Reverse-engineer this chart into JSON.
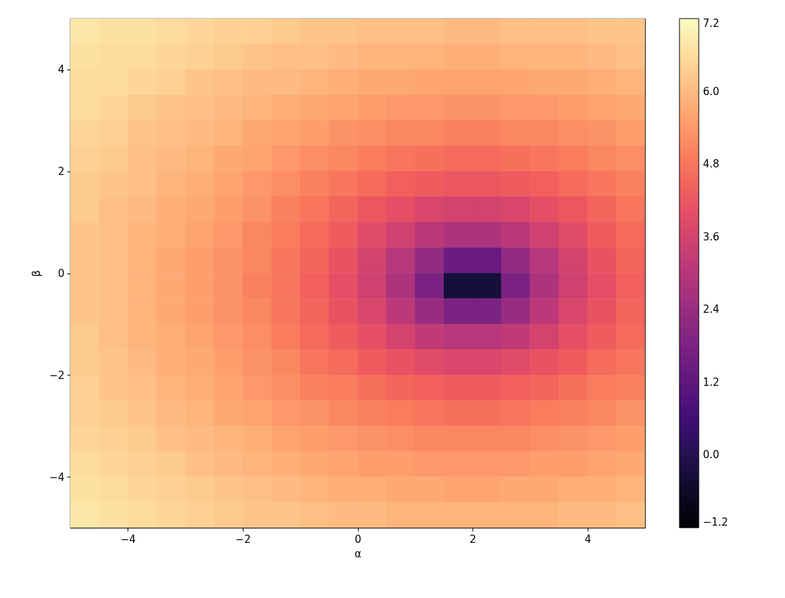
{
  "chart_data": {
    "type": "scatter",
    "marker": "square",
    "xlabel": "α",
    "ylabel": "β",
    "xlim": [
      -5,
      5
    ],
    "ylim": [
      -5,
      5
    ],
    "xticks": [
      -4,
      -2,
      0,
      2,
      4
    ],
    "yticks": [
      -4,
      -2,
      0,
      2,
      4
    ],
    "clim": [
      -1.2,
      7.2
    ],
    "cticks": [
      -1.2,
      {
        "value": 0,
        "label": "0.0"
      },
      1.2,
      2.4,
      3.6,
      4.8,
      {
        "value": 6,
        "label": "6.0"
      },
      7.2
    ],
    "x": [
      -4.75,
      -4.25,
      -3.75,
      -3.25,
      -2.75,
      -2.25,
      -1.75,
      -1.25,
      -0.75,
      -0.25,
      0.25,
      0.75,
      1.25,
      1.75,
      2.25,
      2.75,
      3.25,
      3.75,
      4.25,
      4.75,
      -4.75,
      -4.25,
      -3.75,
      -3.25,
      -2.75,
      -2.25,
      -1.75,
      -1.25,
      -0.75,
      -0.25,
      0.25,
      0.75,
      1.25,
      1.75,
      2.25,
      2.75,
      3.25,
      3.75,
      4.25,
      4.75,
      -4.75,
      -4.25,
      -3.75,
      -3.25,
      -2.75,
      -2.25,
      -1.75,
      -1.25,
      -0.75,
      -0.25,
      0.25,
      0.75,
      1.25,
      1.75,
      2.25,
      2.75,
      3.25,
      3.75,
      4.25,
      4.75,
      -4.75,
      -4.25,
      -3.75,
      -3.25,
      -2.75,
      -2.25,
      -1.75,
      -1.25,
      -0.75,
      -0.25,
      0.25,
      0.75,
      1.25,
      1.75,
      2.25,
      2.75,
      3.25,
      3.75,
      4.25,
      4.75,
      -4.75,
      -4.25,
      -3.75,
      -3.25,
      -2.75,
      -2.25,
      -1.75,
      -1.25,
      -0.75,
      -0.25,
      0.25,
      0.75,
      1.25,
      1.75,
      2.25,
      2.75,
      3.25,
      3.75,
      4.25,
      4.75,
      -4.75,
      -4.25,
      -3.75,
      -3.25,
      -2.75,
      -2.25,
      -1.75,
      -1.25,
      -0.75,
      -0.25,
      0.25,
      0.75,
      1.25,
      1.75,
      2.25,
      2.75,
      3.25,
      3.75,
      4.25,
      4.75,
      -4.75,
      -4.25,
      -3.75,
      -3.25,
      -2.75,
      -2.25,
      -1.75,
      -1.25,
      -0.75,
      -0.25,
      0.25,
      0.75,
      1.25,
      1.75,
      2.25,
      2.75,
      3.25,
      3.75,
      4.25,
      4.75,
      -4.75,
      -4.25,
      -3.75,
      -3.25,
      -2.75,
      -2.25,
      -1.75,
      -1.25,
      -0.75,
      -0.25,
      0.25,
      0.75,
      1.25,
      1.75,
      2.25,
      2.75,
      3.25,
      3.75,
      4.25,
      4.75,
      -4.75,
      -4.25,
      -3.75,
      -3.25,
      -2.75,
      -2.25,
      -1.75,
      -1.25,
      -0.75,
      -0.25,
      0.25,
      0.75,
      1.25,
      1.75,
      2.25,
      2.75,
      3.25,
      3.75,
      4.25,
      4.75,
      -4.75,
      -4.25,
      -3.75,
      -3.25,
      -2.75,
      -2.25,
      -1.75,
      -1.25,
      -0.75,
      -0.25,
      0.25,
      0.75,
      1.25,
      1.75,
      2.25,
      2.75,
      3.25,
      3.75,
      4.25,
      4.75,
      -4.75,
      -4.25,
      -3.75,
      -3.25,
      -2.75,
      -2.25,
      -1.75,
      -1.25,
      -0.75,
      -0.25,
      0.25,
      0.75,
      1.25,
      1.75,
      2.25,
      2.75,
      3.25,
      3.75,
      4.25,
      4.75,
      -4.75,
      -4.25,
      -3.75,
      -3.25,
      -2.75,
      -2.25,
      -1.75,
      -1.25,
      -0.75,
      -0.25,
      0.25,
      0.75,
      1.25,
      1.75,
      2.25,
      2.75,
      3.25,
      3.75,
      4.25,
      4.75,
      -4.75,
      -4.25,
      -3.75,
      -3.25,
      -2.75,
      -2.25,
      -1.75,
      -1.25,
      -0.75,
      -0.25,
      0.25,
      0.75,
      1.25,
      1.75,
      2.25,
      2.75,
      3.25,
      3.75,
      4.25,
      4.75,
      -4.75,
      -4.25,
      -3.75,
      -3.25,
      -2.75,
      -2.25,
      -1.75,
      -1.25,
      -0.75,
      -0.25,
      0.25,
      0.75,
      1.25,
      1.75,
      2.25,
      2.75,
      3.25,
      3.75,
      4.25,
      4.75,
      -4.75,
      -4.25,
      -3.75,
      -3.25,
      -2.75,
      -2.25,
      -1.75,
      -1.25,
      -0.75,
      -0.25,
      0.25,
      0.75,
      1.25,
      1.75,
      2.25,
      2.75,
      3.25,
      3.75,
      4.25,
      4.75,
      -4.75,
      -4.25,
      -3.75,
      -3.25,
      -2.75,
      -2.25,
      -1.75,
      -1.25,
      -0.75,
      -0.25,
      0.25,
      0.75,
      1.25,
      1.75,
      2.25,
      2.75,
      3.25,
      3.75,
      4.25,
      4.75,
      -4.75,
      -4.25,
      -3.75,
      -3.25,
      -2.75,
      -2.25,
      -1.75,
      -1.25,
      -0.75,
      -0.25,
      0.25,
      0.75,
      1.25,
      1.75,
      2.25,
      2.75,
      3.25,
      3.75,
      4.25,
      4.75,
      -4.75,
      -4.25,
      -3.75,
      -3.25,
      -2.75,
      -2.25,
      -1.75,
      -1.25,
      -0.75,
      -0.25,
      0.25,
      0.75,
      1.25,
      1.75,
      2.25,
      2.75,
      3.25,
      3.75,
      4.25,
      4.75,
      -4.75,
      -4.25,
      -3.75,
      -3.25,
      -2.75,
      -2.25,
      -1.75,
      -1.25,
      -0.75,
      -0.25,
      0.25,
      0.75,
      1.25,
      1.75,
      2.25,
      2.75,
      3.25,
      3.75,
      4.25,
      4.75,
      -4.75,
      -4.25,
      -3.75,
      -3.25,
      -2.75,
      -2.25,
      -1.75,
      -1.25,
      -0.75,
      -0.25,
      0.25,
      0.75,
      1.25,
      1.75,
      2.25,
      2.75,
      3.25,
      3.75,
      4.25,
      4.75
    ],
    "values": [
      4.75,
      4.75,
      4.75,
      4.75,
      4.75,
      4.75,
      4.75,
      4.75,
      4.75,
      4.75,
      4.75,
      4.75,
      4.75,
      4.75,
      4.75,
      4.75,
      4.75,
      4.75,
      4.75,
      4.75,
      4.25,
      4.25,
      4.25,
      4.25,
      4.25,
      4.25,
      4.25,
      4.25,
      4.25,
      4.25,
      4.25,
      4.25,
      4.25,
      4.25,
      4.25,
      4.25,
      4.25,
      4.25,
      4.25,
      4.25,
      3.75,
      3.75,
      3.75,
      3.75,
      3.75,
      3.75,
      3.75,
      3.75,
      3.75,
      3.75,
      3.75,
      3.75,
      3.75,
      3.75,
      3.75,
      3.75,
      3.75,
      3.75,
      3.75,
      3.75,
      3.25,
      3.25,
      3.25,
      3.25,
      3.25,
      3.25,
      3.25,
      3.25,
      3.25,
      3.25,
      3.25,
      3.25,
      3.25,
      3.25,
      3.25,
      3.25,
      3.25,
      3.25,
      3.25,
      3.25,
      2.75,
      2.75,
      2.75,
      2.75,
      2.75,
      2.75,
      2.75,
      2.75,
      2.75,
      2.75,
      2.75,
      2.75,
      2.75,
      2.75,
      2.75,
      2.75,
      2.75,
      2.75,
      2.75,
      2.75,
      2.25,
      2.25,
      2.25,
      2.25,
      2.25,
      2.25,
      2.25,
      2.25,
      2.25,
      2.25,
      2.25,
      2.25,
      2.25,
      2.25,
      2.25,
      2.25,
      2.25,
      2.25,
      2.25,
      2.25,
      1.75,
      1.75,
      1.75,
      1.75,
      1.75,
      1.75,
      1.75,
      1.75,
      1.75,
      1.75,
      1.75,
      1.75,
      1.75,
      1.75,
      1.75,
      1.75,
      1.75,
      1.75,
      1.75,
      1.75,
      1.25,
      1.25,
      1.25,
      1.25,
      1.25,
      1.25,
      1.25,
      1.25,
      1.25,
      1.25,
      1.25,
      1.25,
      1.25,
      1.25,
      1.25,
      1.25,
      1.25,
      1.25,
      1.25,
      1.25,
      0.75,
      0.75,
      0.75,
      0.75,
      0.75,
      0.75,
      0.75,
      0.75,
      0.75,
      0.75,
      0.75,
      0.75,
      0.75,
      0.75,
      0.75,
      0.75,
      0.75,
      0.75,
      0.75,
      0.75,
      0.25,
      0.25,
      0.25,
      0.25,
      0.25,
      0.25,
      0.25,
      0.25,
      0.25,
      0.25,
      0.25,
      0.25,
      0.25,
      0.25,
      0.25,
      0.25,
      0.25,
      0.25,
      0.25,
      0.25,
      -0.25,
      -0.25,
      -0.25,
      -0.25,
      -0.25,
      -0.25,
      -0.25,
      -0.25,
      -0.25,
      -0.25,
      -0.25,
      -0.25,
      -0.25,
      -0.25,
      -0.25,
      -0.25,
      -0.25,
      -0.25,
      -0.25,
      -0.25,
      -0.75,
      -0.75,
      -0.75,
      -0.75,
      -0.75,
      -0.75,
      -0.75,
      -0.75,
      -0.75,
      -0.75,
      -0.75,
      -0.75,
      -0.75,
      -0.75,
      -0.75,
      -0.75,
      -0.75,
      -0.75,
      -0.75,
      -0.75,
      -1.25,
      -1.25,
      -1.25,
      -1.25,
      -1.25,
      -1.25,
      -1.25,
      -1.25,
      -1.25,
      -1.25,
      -1.25,
      -1.25,
      -1.25,
      -1.25,
      -1.25,
      -1.25,
      -1.25,
      -1.25,
      -1.25,
      -1.25,
      -1.75,
      -1.75,
      -1.75,
      -1.75,
      -1.75,
      -1.75,
      -1.75,
      -1.75,
      -1.75,
      -1.75,
      -1.75,
      -1.75,
      -1.75,
      -1.75,
      -1.75,
      -1.75,
      -1.75,
      -1.75,
      -1.75,
      -1.75,
      -2.25,
      -2.25,
      -2.25,
      -2.25,
      -2.25,
      -2.25,
      -2.25,
      -2.25,
      -2.25,
      -2.25,
      -2.25,
      -2.25,
      -2.25,
      -2.25,
      -2.25,
      -2.25,
      -2.25,
      -2.25,
      -2.25,
      -2.25,
      -2.75,
      -2.75,
      -2.75,
      -2.75,
      -2.75,
      -2.75,
      -2.75,
      -2.75,
      -2.75,
      -2.75,
      -2.75,
      -2.75,
      -2.75,
      -2.75,
      -2.75,
      -2.75,
      -2.75,
      -2.75,
      -2.75,
      -2.75,
      -3.25,
      -3.25,
      -3.25,
      -3.25,
      -3.25,
      -3.25,
      -3.25,
      -3.25,
      -3.25,
      -3.25,
      -3.25,
      -3.25,
      -3.25,
      -3.25,
      -3.25,
      -3.25,
      -3.25,
      -3.25,
      -3.25,
      -3.25,
      -3.75,
      -3.75,
      -3.75,
      -3.75,
      -3.75,
      -3.75,
      -3.75,
      -3.75,
      -3.75,
      -3.75,
      -3.75,
      -3.75,
      -3.75,
      -3.75,
      -3.75,
      -3.75,
      -3.75,
      -3.75,
      -3.75,
      -3.75,
      -4.25,
      -4.25,
      -4.25,
      -4.25,
      -4.25,
      -4.25,
      -4.25,
      -4.25,
      -4.25,
      -4.25,
      -4.25,
      -4.25,
      -4.25,
      -4.25,
      -4.25,
      -4.25,
      -4.25,
      -4.25,
      -4.25,
      -4.25,
      -4.75,
      -4.75,
      -4.75,
      -4.75,
      -4.75,
      -4.75,
      -4.75,
      -4.75,
      -4.75,
      -4.75,
      -4.75,
      -4.75,
      -4.75,
      -4.75,
      -4.75,
      -4.75,
      -4.75,
      -4.75,
      -4.75,
      -4.75
    ],
    "cvalues": [
      6.8,
      6.7,
      6.7,
      6.6,
      6.5,
      6.4,
      6.4,
      6.3,
      6.2,
      6.2,
      6.1,
      6.1,
      6.1,
      6.0,
      6.0,
      6.1,
      6.1,
      6.1,
      6.2,
      6.2,
      6.7,
      6.6,
      6.6,
      6.5,
      6.4,
      6.3,
      6.2,
      6.1,
      6.1,
      6.0,
      5.9,
      5.9,
      5.9,
      5.8,
      5.8,
      5.9,
      5.9,
      5.9,
      6.0,
      6.1,
      6.6,
      6.6,
      6.5,
      6.4,
      6.2,
      6.1,
      6.0,
      6.0,
      5.9,
      5.8,
      5.7,
      5.7,
      5.6,
      5.6,
      5.6,
      5.6,
      5.7,
      5.7,
      5.8,
      5.9,
      6.6,
      6.5,
      6.3,
      6.2,
      6.1,
      6.0,
      5.9,
      5.8,
      5.7,
      5.6,
      5.5,
      5.4,
      5.4,
      5.3,
      5.3,
      5.4,
      5.4,
      5.5,
      5.6,
      5.7,
      6.5,
      6.4,
      6.2,
      6.1,
      6.0,
      5.9,
      5.7,
      5.6,
      5.5,
      5.3,
      5.2,
      5.1,
      5.1,
      5.0,
      5.0,
      5.1,
      5.1,
      5.2,
      5.3,
      5.5,
      6.4,
      6.3,
      6.1,
      6.0,
      5.9,
      5.7,
      5.6,
      5.4,
      5.2,
      5.1,
      4.9,
      4.8,
      4.7,
      4.6,
      4.6,
      4.7,
      4.8,
      4.9,
      5.1,
      5.2,
      6.3,
      6.2,
      6.1,
      5.9,
      5.8,
      5.6,
      5.4,
      5.2,
      5.0,
      4.8,
      4.6,
      4.4,
      4.3,
      4.2,
      4.2,
      4.3,
      4.4,
      4.6,
      4.8,
      5.0,
      6.3,
      6.1,
      6.0,
      5.8,
      5.7,
      5.5,
      5.3,
      5.0,
      4.8,
      4.5,
      4.2,
      4.0,
      3.7,
      3.6,
      3.6,
      3.7,
      4.0,
      4.2,
      4.5,
      4.8,
      6.2,
      6.1,
      5.9,
      5.8,
      5.6,
      5.4,
      5.1,
      4.9,
      4.6,
      4.3,
      3.9,
      3.5,
      3.1,
      2.8,
      2.8,
      3.1,
      3.5,
      3.9,
      4.3,
      4.6,
      6.2,
      6.1,
      5.9,
      5.7,
      5.5,
      5.3,
      5.1,
      4.8,
      4.5,
      4.1,
      3.6,
      3.0,
      2.3,
      1.4,
      1.4,
      2.3,
      3.0,
      3.6,
      4.1,
      4.5,
      6.2,
      6.1,
      5.9,
      5.7,
      5.5,
      5.3,
      5.0,
      4.8,
      4.4,
      4.0,
      3.5,
      2.8,
      1.8,
      -0.3,
      -0.3,
      1.8,
      2.8,
      3.5,
      4.0,
      4.4,
      6.2,
      6.1,
      5.9,
      5.7,
      5.5,
      5.3,
      5.1,
      4.8,
      4.5,
      4.1,
      3.7,
      3.1,
      2.4,
      1.8,
      1.8,
      2.4,
      3.1,
      3.7,
      4.1,
      4.5,
      6.3,
      6.1,
      5.9,
      5.8,
      5.6,
      5.4,
      5.2,
      4.9,
      4.6,
      4.3,
      4.0,
      3.6,
      3.2,
      3.0,
      3.0,
      3.2,
      3.6,
      4.0,
      4.3,
      4.6,
      6.3,
      6.2,
      6.0,
      5.8,
      5.7,
      5.5,
      5.3,
      5.1,
      4.8,
      4.6,
      4.3,
      4.1,
      3.9,
      3.7,
      3.7,
      3.9,
      4.1,
      4.3,
      4.6,
      4.8,
      6.4,
      6.2,
      6.1,
      5.9,
      5.8,
      5.6,
      5.4,
      5.2,
      5.0,
      4.9,
      4.7,
      4.5,
      4.4,
      4.3,
      4.3,
      4.4,
      4.5,
      4.7,
      4.9,
      5.0,
      6.4,
      6.3,
      6.2,
      6.0,
      5.9,
      5.7,
      5.6,
      5.4,
      5.3,
      5.1,
      5.0,
      4.9,
      4.8,
      4.7,
      4.7,
      4.8,
      4.9,
      5.0,
      5.1,
      5.3,
      6.5,
      6.4,
      6.3,
      6.1,
      6.0,
      5.9,
      5.8,
      5.6,
      5.5,
      5.4,
      5.3,
      5.2,
      5.1,
      5.1,
      5.1,
      5.1,
      5.2,
      5.3,
      5.4,
      5.5,
      6.6,
      6.5,
      6.4,
      6.3,
      6.1,
      6.0,
      5.9,
      5.8,
      5.7,
      5.6,
      5.5,
      5.5,
      5.4,
      5.4,
      5.4,
      5.4,
      5.5,
      5.5,
      5.6,
      5.7,
      6.7,
      6.6,
      6.5,
      6.4,
      6.3,
      6.2,
      6.1,
      6.0,
      5.9,
      5.8,
      5.8,
      5.7,
      5.7,
      5.6,
      5.6,
      5.7,
      5.7,
      5.8,
      5.8,
      5.9,
      6.8,
      6.7,
      6.6,
      6.5,
      6.4,
      6.3,
      6.2,
      6.2,
      6.1,
      6.0,
      6.0,
      5.9,
      5.9,
      5.9,
      5.9,
      5.9,
      5.9,
      6.0,
      6.0,
      6.1
    ]
  }
}
